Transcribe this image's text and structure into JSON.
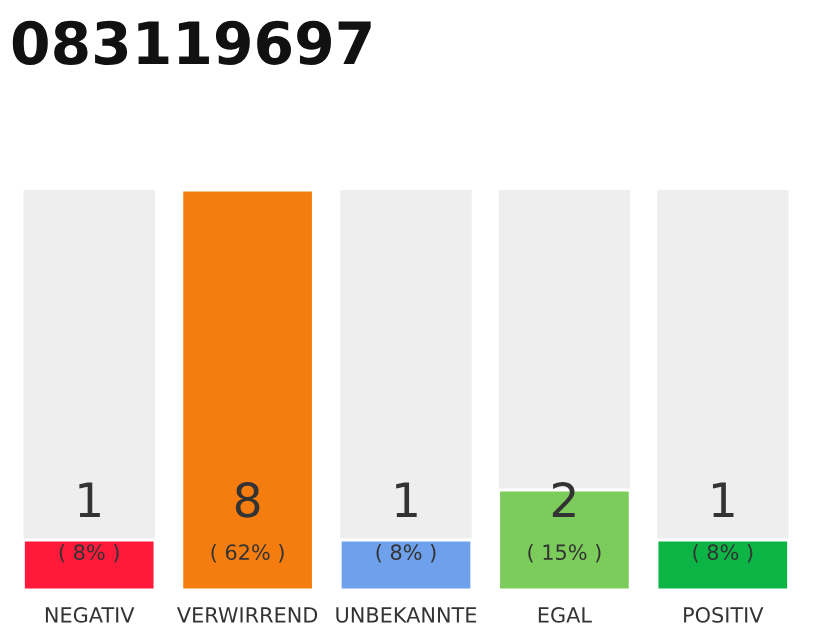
{
  "chart_data": {
    "type": "bar",
    "title": "083119697",
    "categories": [
      "NEGATIV",
      "VERWIRREND",
      "UNBEKANNTE",
      "EGAL",
      "POSITIV"
    ],
    "values": [
      1,
      8,
      1,
      2,
      1
    ],
    "colors": [
      "#ff1a3c",
      "#f57c0f",
      "#6ea0ec",
      "#7ccc5c",
      "#0cb446"
    ],
    "ylim": [
      0,
      8
    ],
    "data_labels": true,
    "grid": false,
    "tick_labels": "x",
    "annotations": [
      "( 8% )",
      "( 62% )",
      "( 8% )",
      "( 15% )",
      "( 8% )"
    ]
  }
}
